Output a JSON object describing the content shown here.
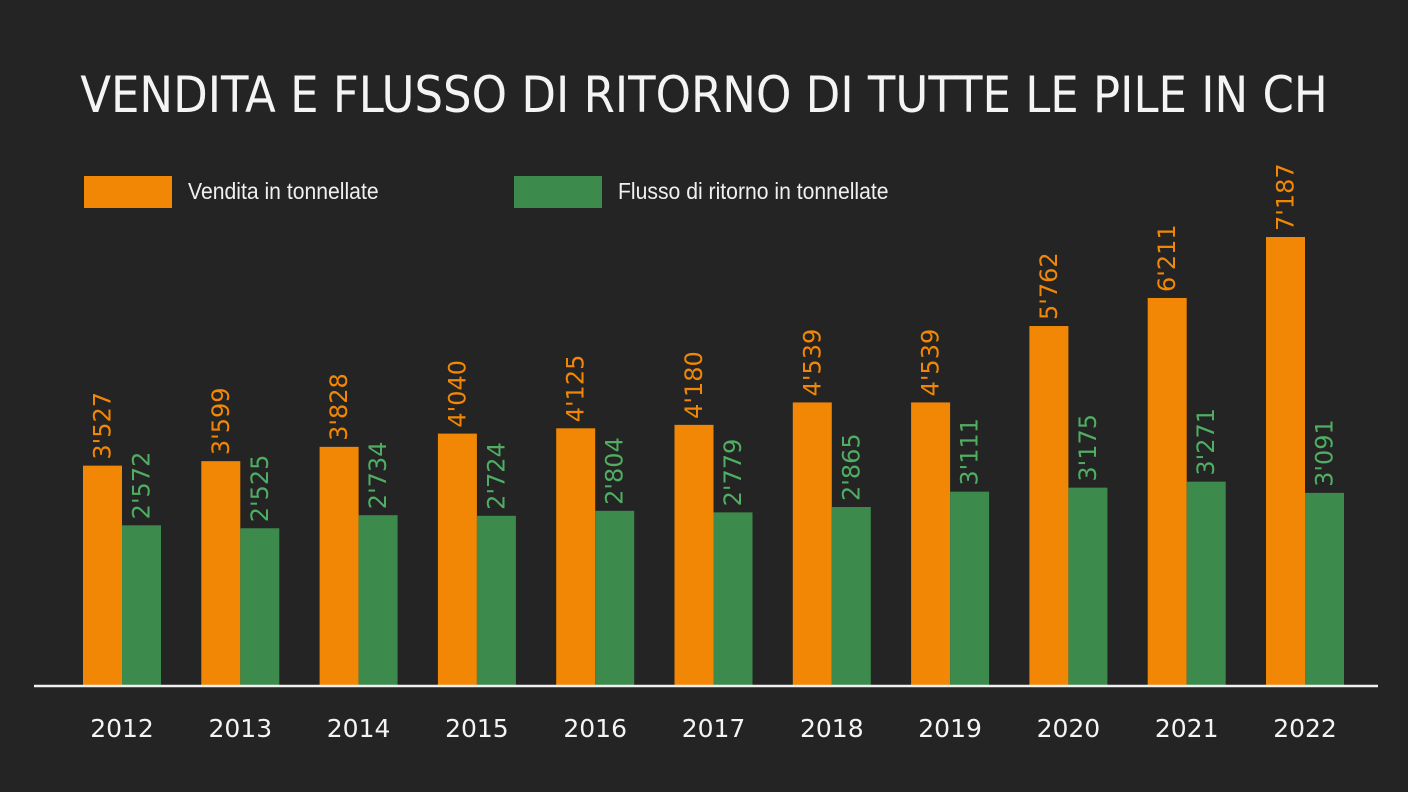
{
  "chart_data": {
    "type": "bar",
    "title": "VENDITA E FLUSSO DI RITORNO DI TUTTE LE PILE IN CH",
    "xlabel": "",
    "ylabel": "",
    "ylim": [
      0,
      7600
    ],
    "grid": false,
    "legend_position": "top-left",
    "categories": [
      "2012",
      "2013",
      "2014",
      "2015",
      "2016",
      "2017",
      "2018",
      "2019",
      "2020",
      "2021",
      "2022"
    ],
    "series": [
      {
        "name": "Vendita in tonnellate",
        "color": "#f28705",
        "values": [
          3527,
          3599,
          3828,
          4040,
          4125,
          4180,
          4539,
          4539,
          5762,
          6211,
          7187
        ],
        "labels": [
          "3'527",
          "3'599",
          "3'828",
          "4'040",
          "4'125",
          "4'180",
          "4'539",
          "4'539",
          "5'762",
          "6'211",
          "7'187"
        ]
      },
      {
        "name": "Flusso di ritorno in tonnellate",
        "color": "#3d8a4d",
        "label_color": "#4fae62",
        "values": [
          2572,
          2525,
          2734,
          2724,
          2804,
          2779,
          2865,
          3111,
          3175,
          3271,
          3091
        ],
        "labels": [
          "2'572",
          "2'525",
          "2'734",
          "2'724",
          "2'804",
          "2'779",
          "2'865",
          "3'111",
          "3'175",
          "3'271",
          "3'091"
        ]
      }
    ]
  }
}
